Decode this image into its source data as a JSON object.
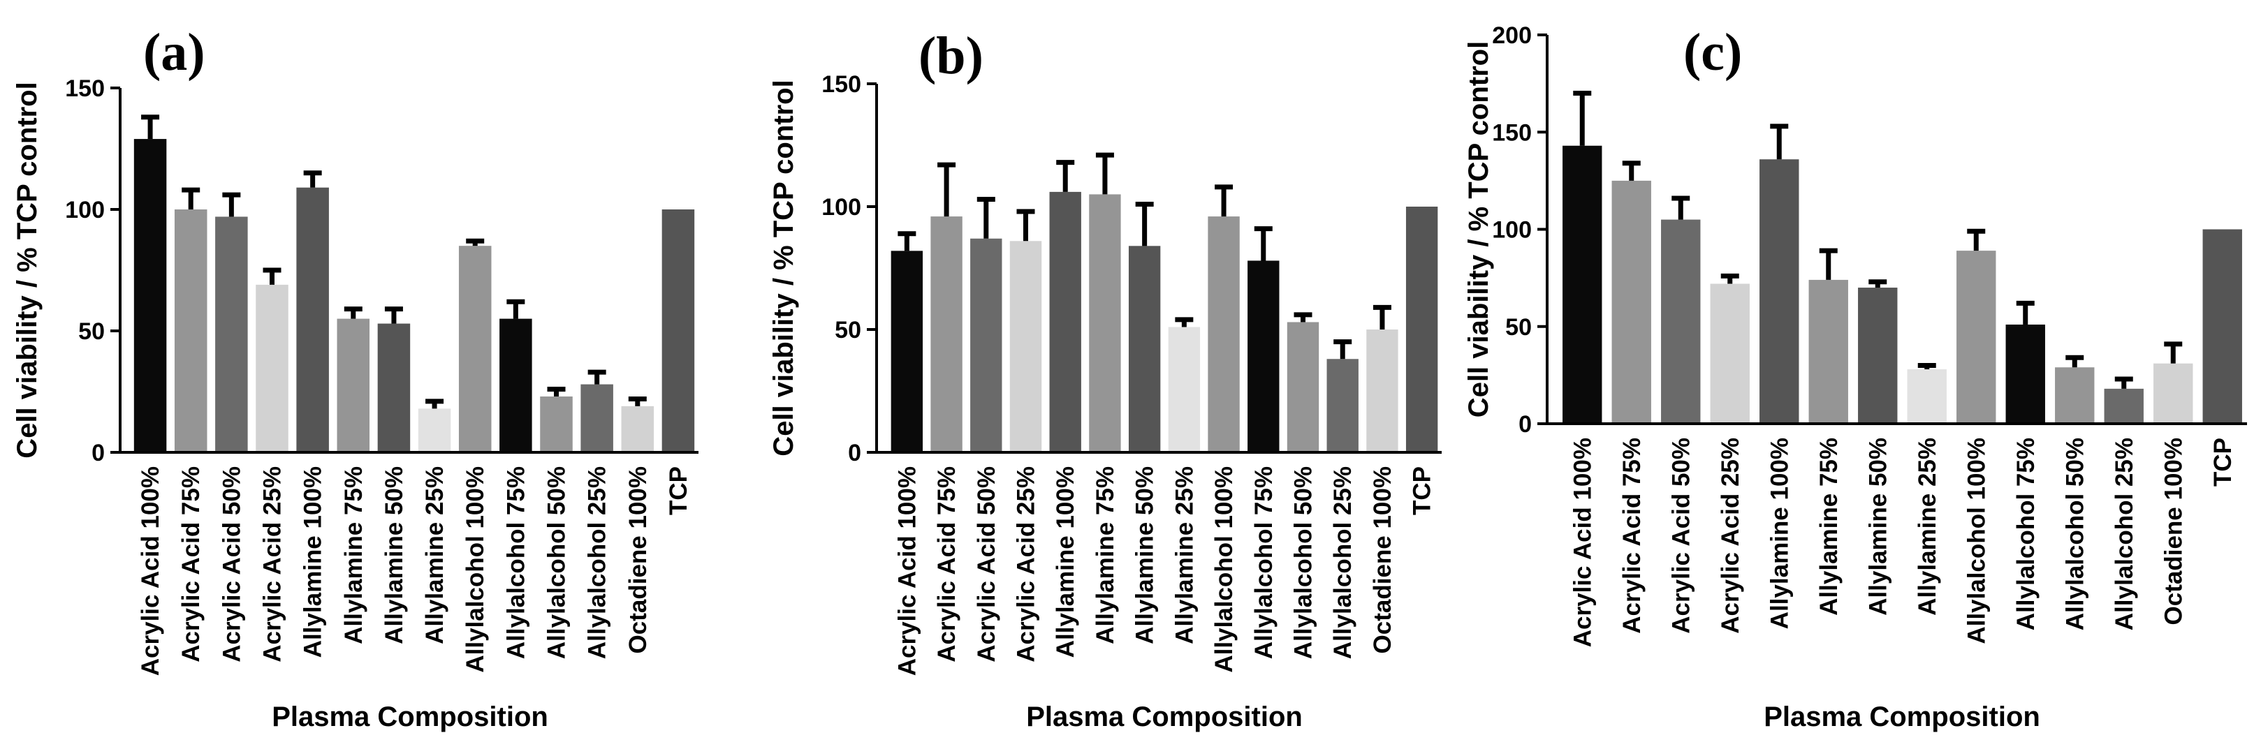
{
  "chart_data": [
    {
      "type": "bar",
      "panel_label": "(a)",
      "ylabel": "Cell viability / % TCP control",
      "xlabel": "Plasma Composition",
      "ylim": [
        0,
        150
      ],
      "yticks": [
        0,
        50,
        100,
        150
      ],
      "categories": [
        "Acrylic Acid 100%",
        "Acrylic Acid 75%",
        "Acrylic Acid 50%",
        "Acrylic Acid 25%",
        "Allylamine 100%",
        "Allylamine 75%",
        "Allylamine 50%",
        "Allylamine 25%",
        "Allylalcohol 100%",
        "Allylalcohol 75%",
        "Allylalcohol 50%",
        "Allylalcohol 25%",
        "Octadiene 100%",
        "TCP"
      ],
      "values": [
        129,
        100,
        97,
        69,
        109,
        55,
        53,
        18,
        85,
        55,
        23,
        28,
        19,
        100
      ],
      "errors": [
        9,
        8,
        9,
        6,
        6,
        4,
        6,
        3,
        2,
        7,
        3,
        5,
        3,
        0
      ],
      "colors": [
        "#0a0a0a",
        "#959595",
        "#6a6a6a",
        "#d2d2d2",
        "#555555",
        "#959595",
        "#555555",
        "#e2e2e2",
        "#959595",
        "#0a0a0a",
        "#959595",
        "#6a6a6a",
        "#d2d2d2",
        "#555555"
      ]
    },
    {
      "type": "bar",
      "panel_label": "(b)",
      "ylabel": "Cell viability / % TCP control",
      "xlabel": "Plasma Composition",
      "ylim": [
        0,
        150
      ],
      "yticks": [
        0,
        50,
        100,
        150
      ],
      "categories": [
        "Acrylic Acid 100%",
        "Acrylic Acid 75%",
        "Acrylic Acid 50%",
        "Acrylic Acid 25%",
        "Allylamine 100%",
        "Allylamine 75%",
        "Allylamine 50%",
        "Allylamine 25%",
        "Allylalcohol 100%",
        "Allylalcohol 75%",
        "Allylalcohol 50%",
        "Allylalcohol 25%",
        "Octadiene 100%",
        "TCP"
      ],
      "values": [
        82,
        96,
        87,
        86,
        106,
        105,
        84,
        51,
        96,
        78,
        53,
        38,
        50,
        100
      ],
      "errors": [
        7,
        21,
        16,
        12,
        12,
        16,
        17,
        3,
        12,
        13,
        3,
        7,
        9,
        0
      ],
      "colors": [
        "#0a0a0a",
        "#959595",
        "#6a6a6a",
        "#d2d2d2",
        "#555555",
        "#959595",
        "#555555",
        "#e2e2e2",
        "#959595",
        "#0a0a0a",
        "#959595",
        "#6a6a6a",
        "#d2d2d2",
        "#555555"
      ]
    },
    {
      "type": "bar",
      "panel_label": "(c)",
      "ylabel": "Cell viability / % TCP control",
      "xlabel": "Plasma Composition",
      "ylim": [
        0,
        200
      ],
      "yticks": [
        0,
        50,
        100,
        150,
        200
      ],
      "categories": [
        "Acrylic Acid 100%",
        "Acrylic Acid 75%",
        "Acrylic Acid 50%",
        "Acrylic Acid 25%",
        "Allylamine 100%",
        "Allylamine 75%",
        "Allylamine 50%",
        "Allylamine 25%",
        "Allylalcohol 100%",
        "Allylalcohol 75%",
        "Allylalcohol 50%",
        "Allylalcohol 25%",
        "Octadiene 100%",
        "TCP"
      ],
      "values": [
        143,
        125,
        105,
        72,
        136,
        74,
        70,
        28,
        89,
        51,
        29,
        18,
        31,
        100
      ],
      "errors": [
        27,
        9,
        11,
        4,
        17,
        15,
        3,
        2,
        10,
        11,
        5,
        5,
        10,
        0
      ],
      "colors": [
        "#0a0a0a",
        "#959595",
        "#6a6a6a",
        "#d2d2d2",
        "#555555",
        "#959595",
        "#555555",
        "#e2e2e2",
        "#959595",
        "#0a0a0a",
        "#959595",
        "#6a6a6a",
        "#d2d2d2",
        "#555555"
      ]
    }
  ]
}
